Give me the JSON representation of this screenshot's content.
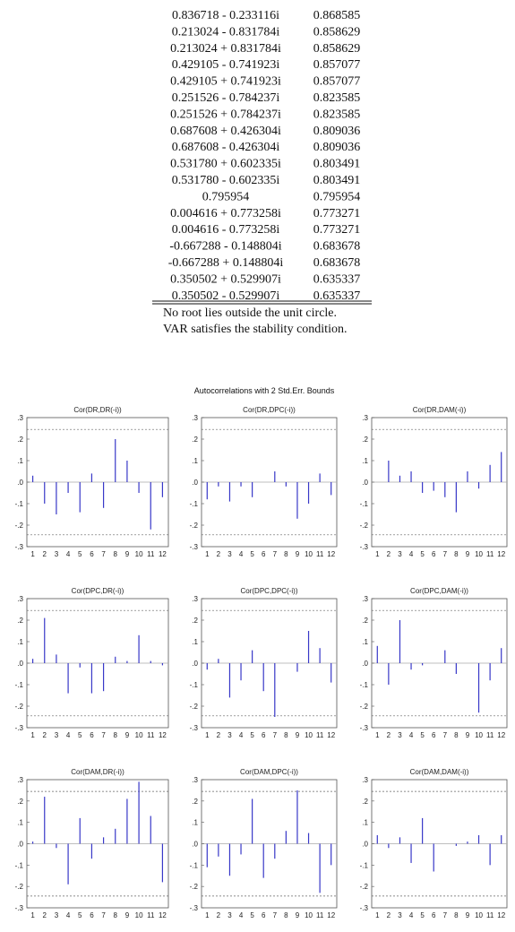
{
  "table": {
    "rows": [
      [
        "0.836718 - 0.233116i",
        "0.868585"
      ],
      [
        "0.213024 - 0.831784i",
        "0.858629"
      ],
      [
        "0.213024 + 0.831784i",
        "0.858629"
      ],
      [
        "0.429105 - 0.741923i",
        "0.857077"
      ],
      [
        "0.429105 + 0.741923i",
        "0.857077"
      ],
      [
        "0.251526 - 0.784237i",
        "0.823585"
      ],
      [
        "0.251526 + 0.784237i",
        "0.823585"
      ],
      [
        "0.687608 + 0.426304i",
        "0.809036"
      ],
      [
        "0.687608 - 0.426304i",
        "0.809036"
      ],
      [
        "0.531780 + 0.602335i",
        "0.803491"
      ],
      [
        "0.531780 - 0.602335i",
        "0.803491"
      ],
      [
        "0.795954",
        "0.795954"
      ],
      [
        "0.004616 + 0.773258i",
        "0.773271"
      ],
      [
        "0.004616 - 0.773258i",
        "0.773271"
      ],
      [
        "-0.667288 - 0.148804i",
        "0.683678"
      ],
      [
        "-0.667288 + 0.148804i",
        "0.683678"
      ],
      [
        "0.350502 + 0.529907i",
        "0.635337"
      ],
      [
        "0.350502 - 0.529907i",
        "0.635337"
      ]
    ]
  },
  "notes": [
    "No root lies outside the unit circle.",
    "VAR satisfies the stability condition."
  ],
  "charts_title": "Autocorrelations with 2 Std.Err. Bounds",
  "chart_data": [
    {
      "type": "bar",
      "title": "Cor(DR,DR(-i))",
      "color": "#3838c8",
      "categories": [
        "1",
        "2",
        "3",
        "4",
        "5",
        "6",
        "7",
        "8",
        "9",
        "10",
        "11",
        "12"
      ],
      "values": [
        0.03,
        -0.1,
        -0.15,
        -0.05,
        -0.14,
        0.04,
        -0.12,
        0.2,
        0.1,
        -0.05,
        -0.22,
        -0.07
      ],
      "ylim": [
        -0.3,
        0.3
      ],
      "yticks": [
        {
          "value": 0.3,
          "label": ".3"
        },
        {
          "value": 0.2,
          "label": ".2"
        },
        {
          "value": 0.1,
          "label": ".1"
        },
        {
          "value": 0,
          "label": ".0"
        },
        {
          "value": -0.1,
          "label": "-.1"
        },
        {
          "value": -0.2,
          "label": "-.2"
        },
        {
          "value": -0.3,
          "label": "-.3"
        }
      ],
      "bounds": [
        0.245,
        -0.245
      ]
    },
    {
      "type": "bar",
      "title": "Cor(DR,DPC(-i))",
      "color": "#3838c8",
      "categories": [
        "1",
        "2",
        "3",
        "4",
        "5",
        "6",
        "7",
        "8",
        "9",
        "10",
        "11",
        "12"
      ],
      "values": [
        -0.08,
        -0.02,
        -0.09,
        -0.02,
        -0.07,
        0,
        0.05,
        -0.02,
        -0.17,
        -0.1,
        0.04,
        -0.06
      ],
      "ylim": [
        -0.3,
        0.3
      ],
      "yticks": [
        {
          "value": 0.3,
          "label": ".3"
        },
        {
          "value": 0.2,
          "label": ".2"
        },
        {
          "value": 0.1,
          "label": ".1"
        },
        {
          "value": 0,
          "label": ".0"
        },
        {
          "value": -0.1,
          "label": "-.1"
        },
        {
          "value": -0.2,
          "label": "-.2"
        },
        {
          "value": -0.3,
          "label": "-.3"
        }
      ],
      "bounds": [
        0.245,
        -0.245
      ]
    },
    {
      "type": "bar",
      "title": "Cor(DR,DAM(-i))",
      "color": "#3838c8",
      "categories": [
        "1",
        "2",
        "3",
        "4",
        "5",
        "6",
        "7",
        "8",
        "9",
        "10",
        "11",
        "12"
      ],
      "values": [
        0,
        0.1,
        0.03,
        0.05,
        -0.05,
        -0.04,
        -0.07,
        -0.14,
        0.05,
        -0.03,
        0.08,
        0.14
      ],
      "ylim": [
        -0.3,
        0.3
      ],
      "yticks": [
        {
          "value": 0.3,
          "label": ".3"
        },
        {
          "value": 0.2,
          "label": ".2"
        },
        {
          "value": 0.1,
          "label": ".1"
        },
        {
          "value": 0,
          "label": ".0"
        },
        {
          "value": -0.1,
          "label": "-.1"
        },
        {
          "value": -0.2,
          "label": "-.2"
        },
        {
          "value": -0.3,
          "label": "-.3"
        }
      ],
      "bounds": [
        0.245,
        -0.245
      ]
    },
    {
      "type": "bar",
      "title": "Cor(DPC,DR(-i))",
      "color": "#3838c8",
      "categories": [
        "1",
        "2",
        "3",
        "4",
        "5",
        "6",
        "7",
        "8",
        "9",
        "10",
        "11",
        "12"
      ],
      "values": [
        0.02,
        0.21,
        0.04,
        -0.14,
        -0.02,
        -0.14,
        -0.13,
        0.03,
        0.01,
        0.13,
        0.01,
        -0.01
      ],
      "ylim": [
        -0.3,
        0.3
      ],
      "yticks": [
        {
          "value": 0.3,
          "label": ".3"
        },
        {
          "value": 0.2,
          "label": ".2"
        },
        {
          "value": 0.1,
          "label": ".1"
        },
        {
          "value": 0,
          "label": ".0"
        },
        {
          "value": -0.1,
          "label": "-.1"
        },
        {
          "value": -0.2,
          "label": "-.2"
        },
        {
          "value": -0.3,
          "label": "-.3"
        }
      ],
      "bounds": [
        0.245,
        -0.245
      ]
    },
    {
      "type": "bar",
      "title": "Cor(DPC,DPC(-i))",
      "color": "#3838c8",
      "categories": [
        "1",
        "2",
        "3",
        "4",
        "5",
        "6",
        "7",
        "8",
        "9",
        "10",
        "11",
        "12"
      ],
      "values": [
        -0.03,
        0.02,
        -0.16,
        -0.08,
        0.06,
        -0.13,
        -0.25,
        0,
        -0.04,
        0.15,
        0.07,
        -0.09
      ],
      "ylim": [
        -0.3,
        0.3
      ],
      "yticks": [
        {
          "value": 0.3,
          "label": ".3"
        },
        {
          "value": 0.2,
          "label": ".2"
        },
        {
          "value": 0.1,
          "label": ".1"
        },
        {
          "value": 0,
          "label": ".0"
        },
        {
          "value": -0.1,
          "label": "-.1"
        },
        {
          "value": -0.2,
          "label": "-.2"
        },
        {
          "value": -0.3,
          "label": "-.3"
        }
      ],
      "bounds": [
        0.245,
        -0.245
      ]
    },
    {
      "type": "bar",
      "title": "Cor(DPC,DAM(-i))",
      "color": "#3838c8",
      "categories": [
        "1",
        "2",
        "3",
        "4",
        "5",
        "6",
        "7",
        "8",
        "9",
        "10",
        "11",
        "12"
      ],
      "values": [
        0.08,
        -0.1,
        0.2,
        -0.03,
        -0.01,
        0,
        0.06,
        -0.05,
        0,
        -0.23,
        -0.08,
        0.07
      ],
      "ylim": [
        -0.3,
        0.3
      ],
      "yticks": [
        {
          "value": 0.3,
          "label": ".3"
        },
        {
          "value": 0.2,
          "label": ".2"
        },
        {
          "value": 0.1,
          "label": ".1"
        },
        {
          "value": 0,
          "label": ".0"
        },
        {
          "value": -0.1,
          "label": "-.1"
        },
        {
          "value": -0.2,
          "label": "-.2"
        },
        {
          "value": -0.3,
          "label": "-.3"
        }
      ],
      "bounds": [
        0.245,
        -0.245
      ]
    },
    {
      "type": "bar",
      "title": "Cor(DAM,DR(-i))",
      "color": "#3838c8",
      "categories": [
        "1",
        "2",
        "3",
        "4",
        "5",
        "6",
        "7",
        "8",
        "9",
        "10",
        "11",
        "12"
      ],
      "values": [
        0.01,
        0.22,
        -0.02,
        -0.19,
        0.12,
        -0.07,
        0.03,
        0.07,
        0.21,
        0.29,
        0.13,
        -0.18
      ],
      "ylim": [
        -0.3,
        0.3
      ],
      "yticks": [
        {
          "value": 0.3,
          "label": ".3"
        },
        {
          "value": 0.2,
          "label": ".2"
        },
        {
          "value": 0.1,
          "label": ".1"
        },
        {
          "value": 0,
          "label": ".0"
        },
        {
          "value": -0.1,
          "label": "-.1"
        },
        {
          "value": -0.2,
          "label": "-.2"
        },
        {
          "value": -0.3,
          "label": "-.3"
        }
      ],
      "bounds": [
        0.245,
        -0.245
      ]
    },
    {
      "type": "bar",
      "title": "Cor(DAM,DPC(-i))",
      "color": "#3838c8",
      "categories": [
        "1",
        "2",
        "3",
        "4",
        "5",
        "6",
        "7",
        "8",
        "9",
        "10",
        "11",
        "12"
      ],
      "values": [
        -0.11,
        -0.06,
        -0.15,
        -0.05,
        0.21,
        -0.16,
        -0.07,
        0.06,
        0.25,
        0.05,
        -0.23,
        -0.1
      ],
      "ylim": [
        -0.3,
        0.3
      ],
      "yticks": [
        {
          "value": 0.3,
          "label": ".3"
        },
        {
          "value": 0.2,
          "label": ".2"
        },
        {
          "value": 0.1,
          "label": ".1"
        },
        {
          "value": 0,
          "label": ".0"
        },
        {
          "value": -0.1,
          "label": "-.1"
        },
        {
          "value": -0.2,
          "label": "-.2"
        },
        {
          "value": -0.3,
          "label": "-.3"
        }
      ],
      "bounds": [
        0.245,
        -0.245
      ]
    },
    {
      "type": "bar",
      "title": "Cor(DAM,DAM(-i))",
      "color": "#3838c8",
      "categories": [
        "1",
        "2",
        "3",
        "4",
        "5",
        "6",
        "7",
        "8",
        "9",
        "10",
        "11",
        "12"
      ],
      "values": [
        0.04,
        -0.02,
        0.03,
        -0.09,
        0.12,
        -0.13,
        0,
        -0.01,
        0.01,
        0.04,
        -0.1,
        0.04
      ],
      "ylim": [
        -0.3,
        0.3
      ],
      "yticks": [
        {
          "value": 0.3,
          "label": ".3"
        },
        {
          "value": 0.2,
          "label": ".2"
        },
        {
          "value": 0.1,
          "label": ".1"
        },
        {
          "value": 0,
          "label": ".0"
        },
        {
          "value": -0.1,
          "label": "-.1"
        },
        {
          "value": -0.2,
          "label": "-.2"
        },
        {
          "value": -0.3,
          "label": "-.3"
        }
      ],
      "bounds": [
        0.245,
        -0.245
      ]
    }
  ]
}
